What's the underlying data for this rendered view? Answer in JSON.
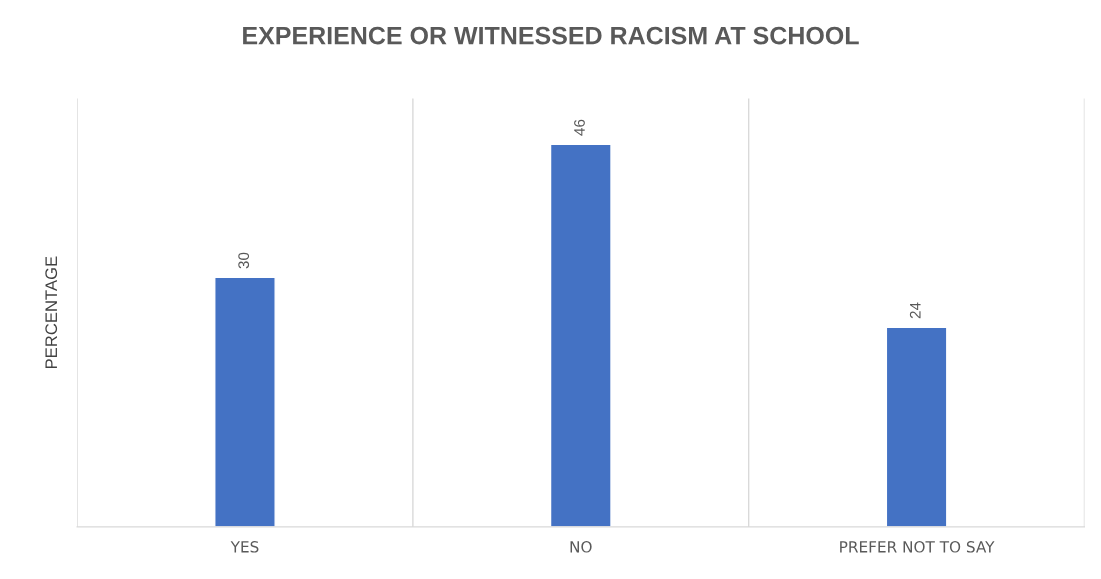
{
  "chart_data": {
    "type": "bar",
    "title": "EXPERIENCE OR WITNESSED RACISM AT SCHOOL",
    "ylabel": "PERCENTAGE",
    "categories": [
      "YES",
      "NO",
      "PREFER NOT TO SAY"
    ],
    "values": [
      30,
      46,
      24
    ],
    "color": "#4472c4",
    "data_labels": true,
    "grid": "x",
    "tick_labels": "x",
    "legend": false
  }
}
